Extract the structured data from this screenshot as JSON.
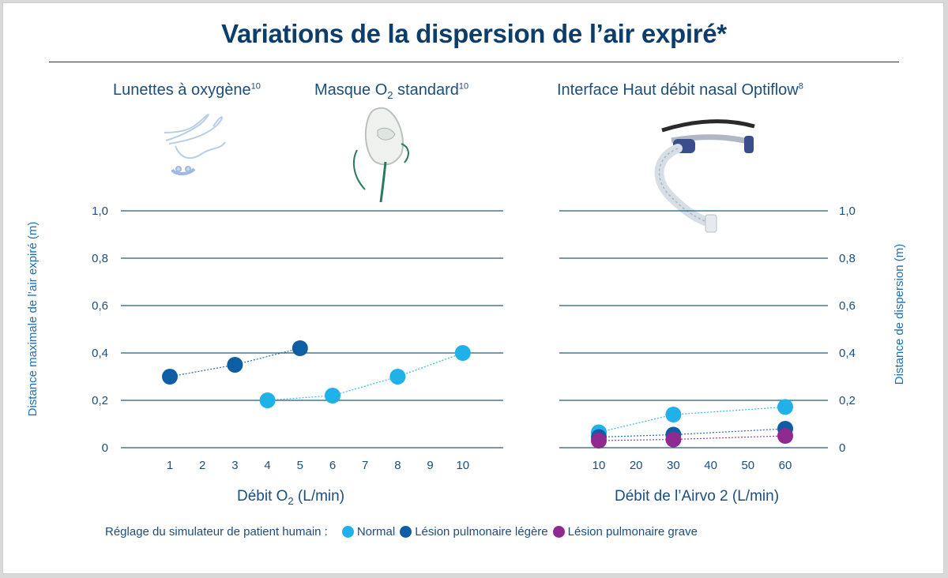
{
  "title": "Variations de la dispersion de l’air expiré*",
  "devices": {
    "nasal_cannula": {
      "label": "Lunettes à oxygène",
      "ref": "10"
    },
    "mask": {
      "label_a": "Masque O",
      "label_sub": "2",
      "label_b": " standard",
      "ref": "10"
    },
    "optiflow": {
      "label": "Interface Haut débit nasal Optiflow",
      "ref": "8"
    }
  },
  "colors": {
    "normal": "#1fb1e8",
    "legere": "#0e5ea6",
    "grave": "#8f2a8f",
    "grid": "#1d5f78",
    "tick": "#1c4e7c"
  },
  "legend": {
    "lead": "Réglage du simulateur de patient humain :",
    "items": [
      {
        "name": "Normal",
        "color": "#1fb1e8"
      },
      {
        "name": "Lésion pulmonaire légère",
        "color": "#0e5ea6"
      },
      {
        "name": "Lésion pulmonaire grave",
        "color": "#8f2a8f"
      }
    ]
  },
  "axes": {
    "left_ylabel": "Distance maximale de l’air expiré (m)",
    "right_ylabel": "Distance de dispersion (m)",
    "left_xlabel_a": "Débit O",
    "left_xlabel_sub": "2",
    "left_xlabel_b": " (L/min)",
    "right_xlabel": "Débit de l’Airvo 2 (L/min)"
  },
  "chart_data": [
    {
      "type": "scatter",
      "title": "Lunettes à oxygène / Masque O2 standard",
      "xlabel": "Débit O2 (L/min)",
      "ylabel": "Distance maximale de l’air expiré (m)",
      "ylim": [
        0,
        1.0
      ],
      "yticks": [
        "0",
        "0,2",
        "0,4",
        "0,6",
        "0,8",
        "1,0"
      ],
      "ytick_values": [
        0,
        0.2,
        0.4,
        0.6,
        0.8,
        1.0
      ],
      "xticks": [
        "1",
        "2",
        "3",
        "4",
        "5",
        "6",
        "7",
        "8",
        "9",
        "10"
      ],
      "grid": true,
      "series": [
        {
          "name": "Lésion pulmonaire légère",
          "x": [
            1,
            3,
            5
          ],
          "y": [
            0.3,
            0.35,
            0.42
          ]
        },
        {
          "name": "Normal",
          "x": [
            4,
            6,
            8,
            10
          ],
          "y": [
            0.2,
            0.22,
            0.3,
            0.4
          ]
        }
      ]
    },
    {
      "type": "scatter",
      "title": "Interface Haut débit nasal Optiflow",
      "xlabel": "Débit de l’Airvo 2 (L/min)",
      "ylabel": "Distance de dispersion (m)",
      "ylim": [
        0,
        1.0
      ],
      "yticks": [
        "0",
        "0,2",
        "0,4",
        "0,6",
        "0,8",
        "1,0"
      ],
      "ytick_values": [
        0,
        0.2,
        0.4,
        0.6,
        0.8,
        1.0
      ],
      "xticks": [
        "10",
        "20",
        "30",
        "40",
        "50",
        "60"
      ],
      "grid": true,
      "series": [
        {
          "name": "Normal",
          "x": [
            10,
            30,
            60
          ],
          "y": [
            0.065,
            0.14,
            0.172
          ]
        },
        {
          "name": "Lésion pulmonaire légère",
          "x": [
            10,
            30,
            60
          ],
          "y": [
            0.045,
            0.055,
            0.08
          ]
        },
        {
          "name": "Lésion pulmonaire grave",
          "x": [
            10,
            30,
            60
          ],
          "y": [
            0.03,
            0.035,
            0.05
          ]
        }
      ]
    }
  ]
}
